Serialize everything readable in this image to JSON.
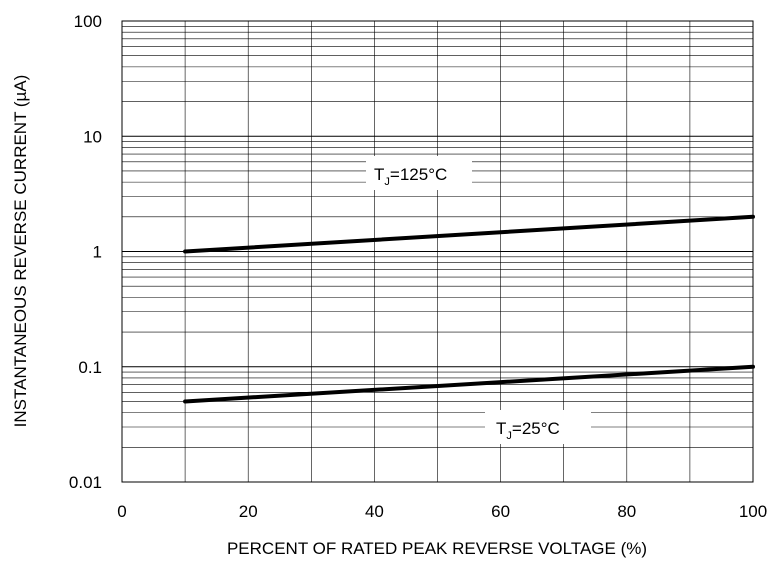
{
  "chart_data": {
    "type": "line",
    "title": "",
    "xlabel": "PERCENT OF RATED PEAK REVERSE VOLTAGE (%)",
    "ylabel": "INSTANTANEOUS REVERSE CURRENT (µA)",
    "xlim": [
      0,
      100
    ],
    "ylim": [
      0.01,
      100
    ],
    "yscale": "log",
    "grid": true,
    "x_ticks": [
      0,
      20,
      40,
      60,
      80,
      100
    ],
    "x_tick_labels": [
      "0",
      "20",
      "40",
      "60",
      "80",
      "100"
    ],
    "y_ticks": [
      0.01,
      0.1,
      1,
      10,
      100
    ],
    "y_tick_labels": [
      "0.01",
      "0.1",
      "1",
      "10",
      "100"
    ],
    "series": [
      {
        "label": {
          "prefix": "T",
          "subscript": "J",
          "value": "=125",
          "unit": "°C"
        },
        "x": [
          10,
          100
        ],
        "y": [
          1.0,
          2.0
        ]
      },
      {
        "label": {
          "prefix": "T",
          "subscript": "J",
          "value": "=25",
          "unit": "°C"
        },
        "x": [
          10,
          100
        ],
        "y": [
          0.05,
          0.1
        ]
      }
    ],
    "line_color": "#000000"
  }
}
